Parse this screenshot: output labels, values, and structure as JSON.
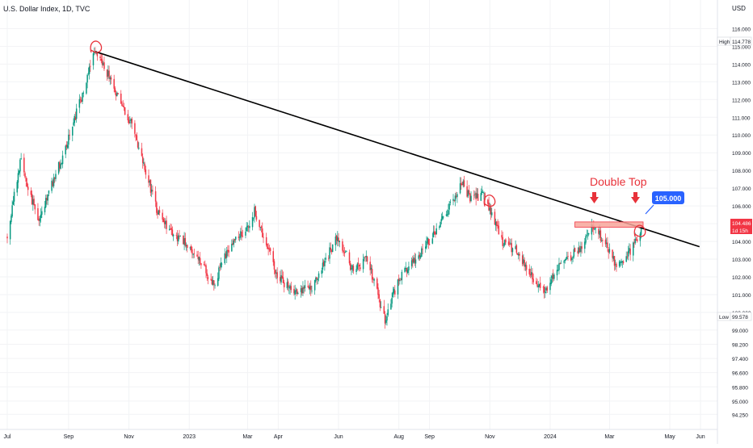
{
  "header": {
    "title": "U.S. Dollar Index, 1D, TVC"
  },
  "price_axis": {
    "currency": "USD"
  },
  "markers": {
    "high": {
      "tag": "High",
      "value": "114.778"
    },
    "low": {
      "tag": "Low",
      "value": "99.578"
    },
    "current": {
      "price": "104.486",
      "countdown": "1d 15h"
    }
  },
  "annotations": {
    "pattern_label": "Double Top",
    "level_label": "105.000"
  },
  "colors": {
    "up": "#089981",
    "down": "#f23645",
    "trendline": "#000000",
    "zone_fill": "#f7a49a",
    "zone_border": "#f23645",
    "callout": "#2962ff",
    "annotation_red": "#e8323a",
    "axis_text": "#131722",
    "grid": "#f2f3f5"
  },
  "chart_data": {
    "type": "candlestick",
    "title": "U.S. Dollar Index, 1D, TVC",
    "ylim": [
      93.9,
      116.7
    ],
    "y_ticks": [
      "116.000",
      "115.000",
      "114.000",
      "113.000",
      "112.000",
      "111.000",
      "110.000",
      "109.000",
      "108.000",
      "107.000",
      "106.000",
      "105.000",
      "104.000",
      "103.000",
      "102.000",
      "101.000",
      "100.000",
      "99.000",
      "98.200",
      "97.400",
      "96.600",
      "95.800",
      "95.000",
      "94.250"
    ],
    "x_ticks": [
      "Jul",
      "Sep",
      "Nov",
      "2023",
      "Mar",
      "Apr",
      "Jun",
      "Aug",
      "Sep",
      "Nov",
      "2024",
      "Mar",
      "May",
      "Jun"
    ],
    "x_tick_dates": [
      "2022-07-01",
      "2022-09-01",
      "2022-11-01",
      "2023-01-01",
      "2023-03-01",
      "2023-04-01",
      "2023-06-01",
      "2023-08-01",
      "2023-09-01",
      "2023-11-01",
      "2024-01-01",
      "2024-03-01",
      "2024-05-01",
      "2024-06-01"
    ],
    "path_anchors": [
      [
        "2022-07-01",
        104.2
      ],
      [
        "2022-07-14",
        108.6
      ],
      [
        "2022-08-01",
        105.2
      ],
      [
        "2022-08-29",
        109.2
      ],
      [
        "2022-09-28",
        114.7
      ],
      [
        "2022-10-12",
        113.3
      ],
      [
        "2022-10-24",
        111.7
      ],
      [
        "2022-11-04",
        110.6
      ],
      [
        "2022-11-22",
        107.2
      ],
      [
        "2022-12-01",
        105.5
      ],
      [
        "2022-12-16",
        104.5
      ],
      [
        "2023-01-02",
        103.6
      ],
      [
        "2023-01-26",
        101.6
      ],
      [
        "2023-02-08",
        103.4
      ],
      [
        "2023-03-01",
        104.8
      ],
      [
        "2023-03-08",
        105.7
      ],
      [
        "2023-03-31",
        102.1
      ],
      [
        "2023-04-14",
        101.2
      ],
      [
        "2023-05-05",
        101.4
      ],
      [
        "2023-05-31",
        104.3
      ],
      [
        "2023-06-16",
        102.3
      ],
      [
        "2023-06-30",
        103.0
      ],
      [
        "2023-07-18",
        99.6
      ],
      [
        "2023-08-01",
        101.9
      ],
      [
        "2023-08-31",
        104.0
      ],
      [
        "2023-09-15",
        105.3
      ],
      [
        "2023-10-03",
        107.3
      ],
      [
        "2023-10-12",
        106.5
      ],
      [
        "2023-10-27",
        106.6
      ],
      [
        "2023-11-14",
        104.0
      ],
      [
        "2023-11-30",
        103.4
      ],
      [
        "2023-12-14",
        101.9
      ],
      [
        "2023-12-28",
        101.2
      ],
      [
        "2024-01-08",
        102.5
      ],
      [
        "2024-01-31",
        103.6
      ],
      [
        "2024-02-14",
        104.9
      ],
      [
        "2024-02-23",
        104.1
      ],
      [
        "2024-03-08",
        102.7
      ],
      [
        "2024-03-20",
        103.3
      ],
      [
        "2024-04-02",
        104.5
      ]
    ],
    "overlays": {
      "trendline": {
        "from": [
          "2022-09-28",
          114.7
        ],
        "to": [
          "2024-05-31",
          103.7
        ]
      },
      "resistance_zone": {
        "from_date": "2024-01-26",
        "to_date": "2024-04-04",
        "low": 104.8,
        "high": 105.1
      },
      "tops": [
        "2022-09-28",
        "2023-10-31",
        "2024-03-31"
      ]
    }
  }
}
